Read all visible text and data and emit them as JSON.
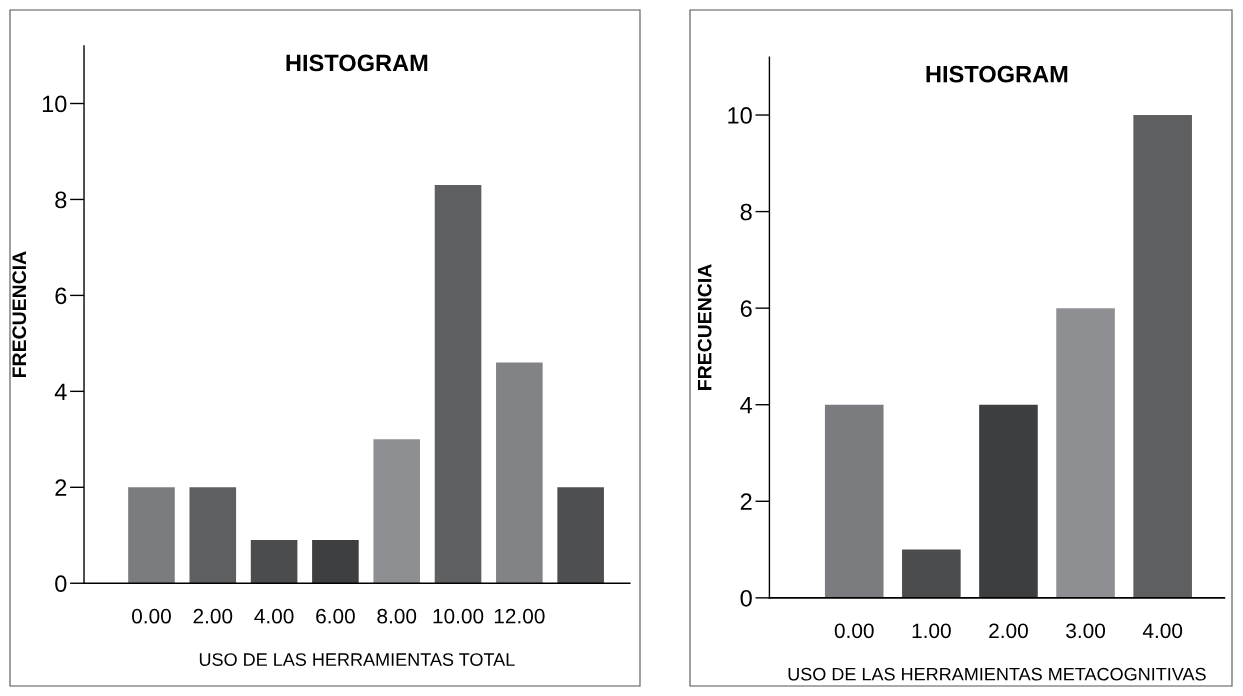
{
  "chart_data": [
    {
      "type": "bar",
      "title": "HISTOGRAM",
      "xlabel": "USO DE LAS HERRAMIENTAS TOTAL",
      "ylabel": "FRECUENCIA",
      "categories": [
        "0.00",
        "2.00",
        "4.00",
        "6.00",
        "8.00",
        "10.00",
        "12.00",
        null
      ],
      "values": [
        2,
        2,
        0.9,
        0.9,
        3,
        8.3,
        4.6,
        2
      ],
      "colors": [
        "#7b7c80",
        "#5e5f61",
        "#4b4c4e",
        "#3e3f41",
        "#8e8f92",
        "#5e5f61",
        "#828387",
        "#4e4f51"
      ],
      "ylim": [
        0,
        11.2
      ],
      "yticks": [
        0,
        2,
        4,
        6,
        8,
        10
      ],
      "grid": false,
      "legend": false
    },
    {
      "type": "bar",
      "title": "HISTOGRAM",
      "xlabel": "USO DE LAS HERRAMIENTAS METACOGNITIVAS",
      "ylabel": "FRECUENCIA",
      "categories": [
        "0.00",
        "1.00",
        "2.00",
        "3.00",
        "4.00"
      ],
      "values": [
        4,
        1,
        4,
        6,
        10
      ],
      "colors": [
        "#7b7c80",
        "#4b4c4e",
        "#3d3e40",
        "#8e8f92",
        "#5e5f61"
      ],
      "ylim": [
        0,
        11.2
      ],
      "yticks": [
        0,
        2,
        4,
        6,
        8,
        10
      ],
      "grid": false,
      "legend": false
    }
  ]
}
